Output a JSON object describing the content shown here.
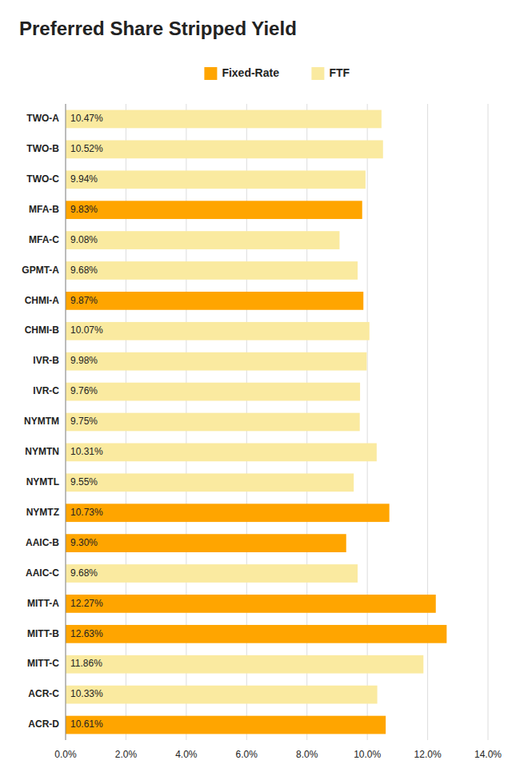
{
  "chart_data": {
    "type": "bar",
    "orientation": "horizontal",
    "title": "Preferred Share Stripped Yield",
    "categories": [
      "TWO-A",
      "TWO-B",
      "TWO-C",
      "MFA-B",
      "MFA-C",
      "GPMT-A",
      "CHMI-A",
      "CHMI-B",
      "IVR-B",
      "IVR-C",
      "NYMTM",
      "NYMTN",
      "NYMTL",
      "NYMTZ",
      "AAIC-B",
      "AAIC-C",
      "MITT-A",
      "MITT-B",
      "MITT-C",
      "ACR-C",
      "ACR-D"
    ],
    "series": [
      {
        "name": "Fixed-Rate",
        "color": "#FFA500",
        "values": [
          null,
          null,
          null,
          9.83,
          null,
          null,
          9.87,
          null,
          null,
          null,
          null,
          null,
          null,
          10.73,
          9.3,
          null,
          12.27,
          12.63,
          null,
          null,
          10.61
        ],
        "value_labels": [
          null,
          null,
          null,
          "9.83%",
          null,
          null,
          "9.87%",
          null,
          null,
          null,
          null,
          null,
          null,
          "10.73%",
          "9.30%",
          null,
          "12.27%",
          "12.63%",
          null,
          null,
          "10.61%"
        ]
      },
      {
        "name": "FTF",
        "color": "#FAEAA0",
        "values": [
          10.47,
          10.52,
          9.94,
          null,
          9.08,
          9.68,
          null,
          10.07,
          9.98,
          9.76,
          9.75,
          10.31,
          9.55,
          null,
          null,
          9.68,
          null,
          null,
          11.86,
          10.33,
          null
        ],
        "value_labels": [
          "10.47%",
          "10.52%",
          "9.94%",
          null,
          "9.08%",
          "9.68%",
          null,
          "10.07%",
          "9.98%",
          "9.76%",
          "9.75%",
          "10.31%",
          "9.55%",
          null,
          null,
          "9.68%",
          null,
          null,
          "11.86%",
          "10.33%",
          null
        ]
      }
    ],
    "stacked": true,
    "data_labels": true,
    "xlim": [
      0,
      14.0
    ],
    "xticks": [
      {
        "value": 0,
        "label": "0.0%"
      },
      {
        "value": 2,
        "label": "2.0%"
      },
      {
        "value": 4,
        "label": "4.0%"
      },
      {
        "value": 6,
        "label": "6.0%"
      },
      {
        "value": 8,
        "label": "8.0%"
      },
      {
        "value": 10,
        "label": "10.0%"
      },
      {
        "value": 12,
        "label": "12.0%"
      },
      {
        "value": 14,
        "label": "14.0%"
      }
    ],
    "grid": true,
    "legend": "top"
  }
}
